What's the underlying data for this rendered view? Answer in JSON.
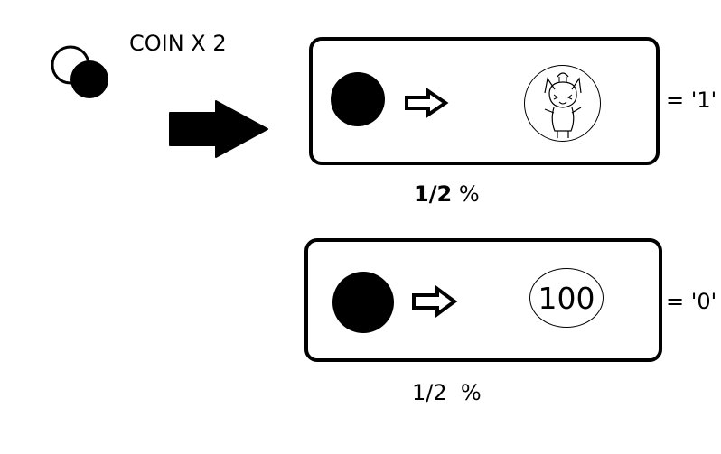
{
  "coin_title": "COIN X 2",
  "outcomes": [
    {
      "equals_label": "= '1'",
      "probability_fraction": "1/2",
      "probability_unit": "%",
      "prize_icon": "character-face-icon"
    },
    {
      "equals_label": "= '0'",
      "probability_fraction": "1/2",
      "probability_unit": "%",
      "prize_value": "100"
    }
  ],
  "colors": {
    "ink": "#000000",
    "background": "#ffffff"
  }
}
